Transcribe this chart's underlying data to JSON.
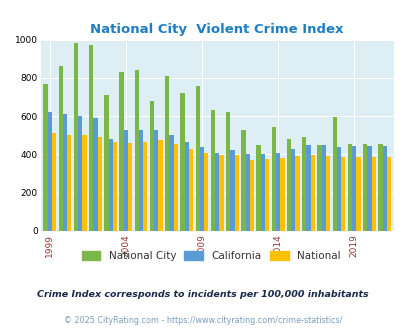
{
  "title": "National City  Violent Crime Index",
  "years": [
    1999,
    2000,
    2001,
    2002,
    2003,
    2004,
    2005,
    2006,
    2007,
    2008,
    2009,
    2010,
    2011,
    2012,
    2013,
    2014,
    2015,
    2016,
    2017,
    2018,
    2019,
    2020,
    2021
  ],
  "national_city": [
    770,
    860,
    980,
    970,
    710,
    830,
    840,
    680,
    810,
    720,
    760,
    630,
    620,
    530,
    450,
    545,
    480,
    490,
    450,
    595,
    455,
    455,
    455
  ],
  "california": [
    620,
    610,
    600,
    590,
    480,
    530,
    530,
    530,
    500,
    465,
    440,
    410,
    425,
    400,
    400,
    410,
    430,
    450,
    450,
    440,
    445,
    445,
    445
  ],
  "national": [
    510,
    500,
    500,
    490,
    465,
    460,
    465,
    475,
    455,
    430,
    405,
    395,
    395,
    370,
    375,
    380,
    390,
    395,
    390,
    385,
    385,
    385,
    385
  ],
  "color_nc": "#7ab648",
  "color_ca": "#5b9bd5",
  "color_nat": "#ffc000",
  "title_color": "#1f7ec2",
  "bg_color": "#ddeef4",
  "subtitle": "Crime Index corresponds to incidents per 100,000 inhabitants",
  "footnote": "© 2025 CityRating.com - https://www.cityrating.com/crime-statistics/",
  "subtitle_color": "#1a2a4a",
  "footnote_color": "#7b9ec0",
  "ylim": [
    0,
    1000
  ],
  "yticks": [
    0,
    200,
    400,
    600,
    800,
    1000
  ],
  "xtick_years": [
    1999,
    2004,
    2009,
    2014,
    2019
  ],
  "xtick_color": "#993333"
}
